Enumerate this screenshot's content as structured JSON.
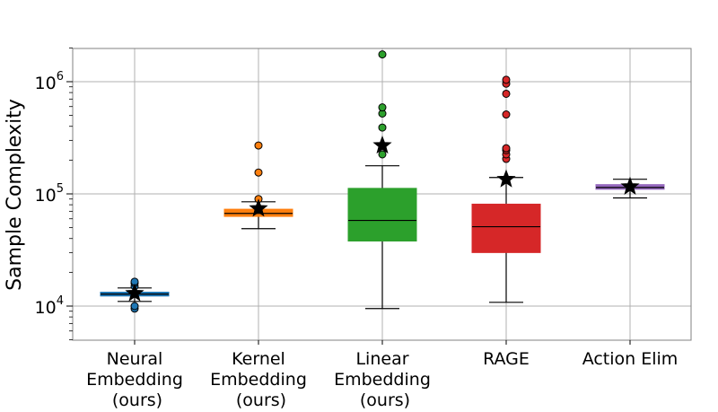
{
  "chart_data": {
    "type": "box",
    "ylabel": "Sample Complexity",
    "yscale": "log",
    "ylim": [
      5000,
      2000000
    ],
    "yticks": [
      {
        "value": 10000,
        "base": "10",
        "exp": "4"
      },
      {
        "value": 100000,
        "base": "10",
        "exp": "5"
      },
      {
        "value": 1000000,
        "base": "10",
        "exp": "6"
      }
    ],
    "grid": true,
    "mean_marker": "star",
    "categories": [
      {
        "lines": [
          "Neural",
          "Embedding",
          "(ours)"
        ],
        "color": "#1f77b4",
        "whisker_low": 11000,
        "q1": 12300,
        "median": 12800,
        "q3": 13300,
        "whisker_high": 14500,
        "mean": 13000,
        "outliers": [
          9500,
          10000,
          15000,
          16000,
          16500
        ]
      },
      {
        "lines": [
          "Kernel",
          "Embedding",
          "(ours)"
        ],
        "color": "#ff7f0e",
        "whisker_low": 49000,
        "q1": 63000,
        "median": 67000,
        "q3": 73000,
        "whisker_high": 85000,
        "mean": 74000,
        "outliers": [
          90000,
          155000,
          270000
        ]
      },
      {
        "lines": [
          "Linear",
          "Embedding",
          "(ours)"
        ],
        "color": "#2ca02c",
        "whisker_low": 9500,
        "q1": 38000,
        "median": 58000,
        "q3": 112000,
        "whisker_high": 178000,
        "mean": 270000,
        "outliers": [
          225000,
          390000,
          520000,
          590000,
          1750000
        ]
      },
      {
        "lines": [
          "RAGE"
        ],
        "color": "#d62728",
        "whisker_low": 10800,
        "q1": 30000,
        "median": 51000,
        "q3": 81000,
        "whisker_high": 140000,
        "mean": 135000,
        "outliers": [
          205000,
          225000,
          245000,
          255000,
          510000,
          780000,
          960000,
          1040000
        ]
      },
      {
        "lines": [
          "Action Elim"
        ],
        "color": "#9467bd",
        "whisker_low": 92000,
        "q1": 110000,
        "median": 114000,
        "q3": 121000,
        "whisker_high": 135000,
        "mean": 116000,
        "outliers": []
      }
    ]
  }
}
